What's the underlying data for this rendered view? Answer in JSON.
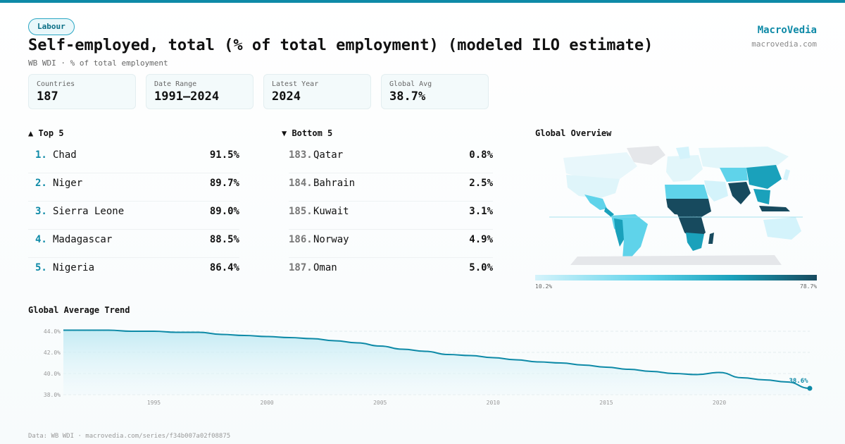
{
  "header": {
    "category": "Labour",
    "title": "Self-employed, total (% of total employment) (modeled ILO estimate)",
    "subtitle": "WB WDI · % of total employment"
  },
  "brand": {
    "name": "MacroVedia",
    "url": "macrovedia.com"
  },
  "stats": [
    {
      "label": "Countries",
      "value": "187"
    },
    {
      "label": "Date Range",
      "value": "1991–2024"
    },
    {
      "label": "Latest Year",
      "value": "2024"
    },
    {
      "label": "Global Avg",
      "value": "38.7%"
    }
  ],
  "top5": {
    "heading": "▲ Top 5",
    "items": [
      {
        "rank": "1.",
        "country": "Chad",
        "value": "91.5%"
      },
      {
        "rank": "2.",
        "country": "Niger",
        "value": "89.7%"
      },
      {
        "rank": "3.",
        "country": "Sierra Leone",
        "value": "89.0%"
      },
      {
        "rank": "4.",
        "country": "Madagascar",
        "value": "88.5%"
      },
      {
        "rank": "5.",
        "country": "Nigeria",
        "value": "86.4%"
      }
    ]
  },
  "bottom5": {
    "heading": "▼ Bottom 5",
    "items": [
      {
        "rank": "183.",
        "country": "Qatar",
        "value": "0.8%"
      },
      {
        "rank": "184.",
        "country": "Bahrain",
        "value": "2.5%"
      },
      {
        "rank": "185.",
        "country": "Kuwait",
        "value": "3.1%"
      },
      {
        "rank": "186.",
        "country": "Norway",
        "value": "4.9%"
      },
      {
        "rank": "187.",
        "country": "Oman",
        "value": "5.0%"
      }
    ]
  },
  "map": {
    "heading": "Global Overview",
    "legend_min": "10.2%",
    "legend_max": "78.7%",
    "colors": [
      "#d4f3fb",
      "#5fd3ea",
      "#1aa1bb",
      "#174a5e"
    ],
    "no_data_color": "#e5e7ea"
  },
  "trend": {
    "heading": "Global Average Trend"
  },
  "footer": "Data: WB WDI · macrovedia.com/series/f34b007a02f08875",
  "chart_data": {
    "type": "area",
    "title": "Global Average Trend",
    "x": [
      1991,
      1992,
      1993,
      1994,
      1995,
      1996,
      1997,
      1998,
      1999,
      2000,
      2001,
      2002,
      2003,
      2004,
      2005,
      2006,
      2007,
      2008,
      2009,
      2010,
      2011,
      2012,
      2013,
      2014,
      2015,
      2016,
      2017,
      2018,
      2019,
      2020,
      2021,
      2022,
      2023,
      2024
    ],
    "series": [
      {
        "values": [
          44.1,
          44.1,
          44.1,
          44.0,
          44.0,
          43.9,
          43.9,
          43.7,
          43.6,
          43.5,
          43.4,
          43.3,
          43.1,
          42.9,
          42.6,
          42.3,
          42.1,
          41.8,
          41.7,
          41.5,
          41.3,
          41.1,
          41.0,
          40.8,
          40.6,
          40.4,
          40.2,
          40.0,
          39.9,
          40.1,
          39.6,
          39.4,
          39.2,
          38.6
        ]
      }
    ],
    "ylim": [
      38.0,
      44.0
    ],
    "yticks": [
      "38.0%",
      "40.0%",
      "42.0%",
      "44.0%"
    ],
    "xticks": [
      1995,
      2000,
      2005,
      2010,
      2015,
      2020
    ],
    "end_label": "38.6%",
    "grid": true,
    "color": "#0e8aa7"
  }
}
